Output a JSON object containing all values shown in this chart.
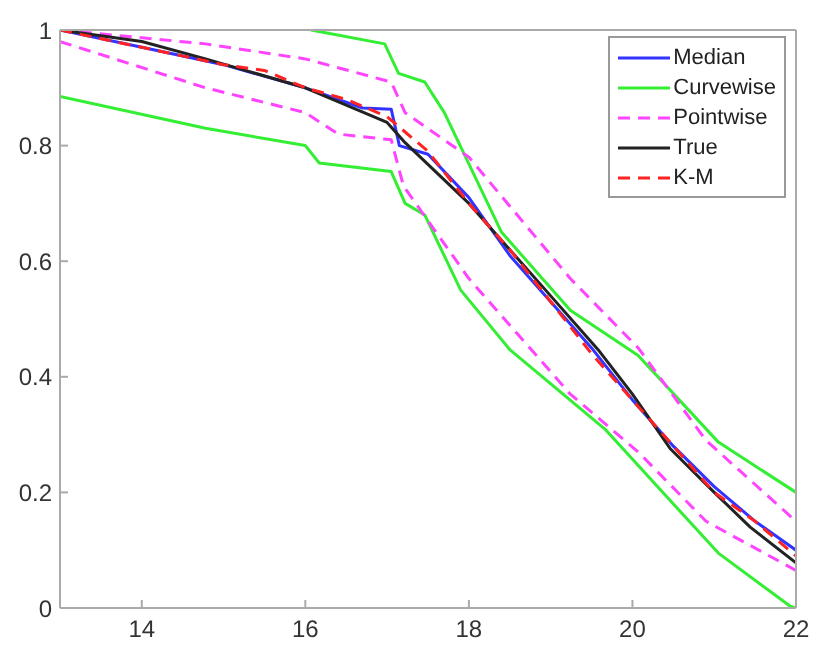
{
  "chart_data": {
    "type": "line",
    "xlim": [
      13,
      22
    ],
    "ylim": [
      0,
      1
    ],
    "xticks": [
      14,
      16,
      18,
      20,
      22
    ],
    "yticks": [
      0,
      0.2,
      0.4,
      0.6,
      0.8,
      1
    ],
    "legend": "top right",
    "marker": "none",
    "series": [
      {
        "name": "Median",
        "color": "#3333ff",
        "line_style": "solid",
        "x": [
          13,
          14,
          15,
          16,
          16.7,
          17.05,
          17.15,
          17.5,
          18,
          18.5,
          19,
          19.5,
          20,
          20.5,
          21,
          21.5,
          22
        ],
        "values": [
          1,
          0.97,
          0.94,
          0.9,
          0.865,
          0.863,
          0.8,
          0.785,
          0.71,
          0.61,
          0.53,
          0.45,
          0.36,
          0.28,
          0.21,
          0.15,
          0.1
        ]
      },
      {
        "name": "Curvewise",
        "color": "#33ee33",
        "line_style": "solid",
        "x": [
          16.07,
          16.97,
          17.14,
          17.46,
          17.7,
          18.4,
          19.24,
          20.07,
          21.05,
          22
        ],
        "values": [
          1,
          0.976,
          0.925,
          0.91,
          0.857,
          0.65,
          0.515,
          0.437,
          0.287,
          0.2
        ]
      },
      {
        "color": "#33ee33",
        "line_style": "solid",
        "x": [
          13,
          14.78,
          16,
          16.17,
          17.05,
          17.22,
          17.46,
          17.9,
          18.5,
          19.66,
          21.05,
          21.93,
          22
        ],
        "values": [
          0.885,
          0.83,
          0.8,
          0.77,
          0.755,
          0.7,
          0.68,
          0.55,
          0.447,
          0.31,
          0.095,
          0.003,
          0
        ]
      },
      {
        "name": "Pointwise",
        "color": "#ff44ff",
        "line_style": "dashed",
        "x": [
          13,
          14.78,
          16,
          17.05,
          17.22,
          18,
          19.24,
          20.07,
          20.9,
          22
        ],
        "values": [
          1,
          0.976,
          0.95,
          0.91,
          0.857,
          0.78,
          0.57,
          0.45,
          0.29,
          0.15
        ]
      },
      {
        "color": "#ff44ff",
        "line_style": "dashed",
        "x": [
          13,
          14.78,
          16,
          16.4,
          17.05,
          17.2,
          18,
          19.24,
          20.07,
          20.9,
          22
        ],
        "values": [
          0.98,
          0.9,
          0.857,
          0.82,
          0.81,
          0.73,
          0.57,
          0.37,
          0.27,
          0.15,
          0.065
        ]
      },
      {
        "name": "True",
        "color": "#222222",
        "line_style": "solid",
        "x": [
          13,
          14,
          14.78,
          16,
          17,
          17.22,
          18,
          18.5,
          19,
          19.58,
          20,
          20.46,
          21,
          21.44,
          22
        ],
        "values": [
          1,
          0.98,
          0.95,
          0.9,
          0.84,
          0.805,
          0.7,
          0.62,
          0.54,
          0.447,
          0.37,
          0.276,
          0.2,
          0.14,
          0.078
        ]
      },
      {
        "name": "K-M",
        "color": "#ff2222",
        "line_style": "dashed",
        "x": [
          13,
          14,
          15,
          15.5,
          16,
          16.5,
          17,
          17.5,
          18,
          18.5,
          19,
          19.5,
          20,
          20.5,
          21,
          21.5,
          22
        ],
        "values": [
          1,
          0.97,
          0.94,
          0.93,
          0.9,
          0.88,
          0.85,
          0.79,
          0.7,
          0.62,
          0.53,
          0.44,
          0.36,
          0.28,
          0.2,
          0.15,
          0.09
        ]
      }
    ]
  }
}
